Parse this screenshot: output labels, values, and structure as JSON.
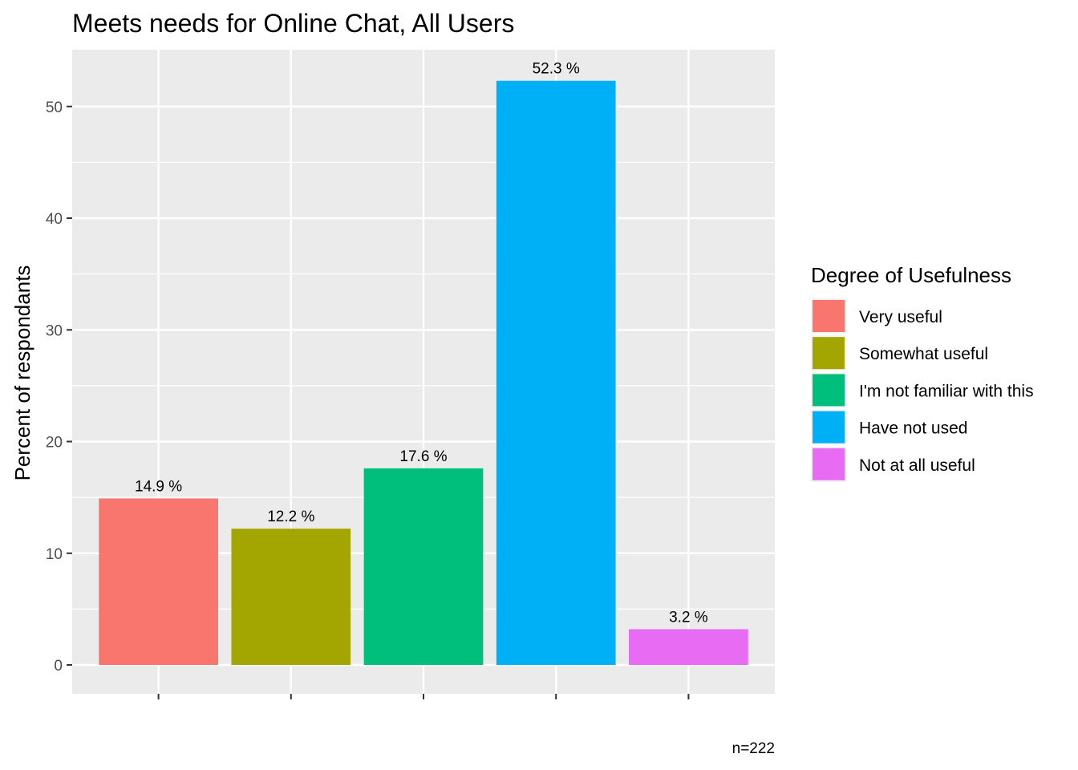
{
  "chart_data": {
    "type": "bar",
    "title": "Meets needs for Online Chat, All Users",
    "xlabel": "",
    "ylabel": "Percent of respondants",
    "ylim": [
      0,
      54.9
    ],
    "yticks": [
      0,
      10,
      20,
      30,
      40,
      50
    ],
    "grid": true,
    "legend": {
      "title": "Degree of Usefulness",
      "placement": "right"
    },
    "categories": [
      "Very useful",
      "Somewhat useful",
      "I'm not familiar with this",
      "Have not used",
      "Not at all useful"
    ],
    "values": [
      14.9,
      12.2,
      17.6,
      52.3,
      3.2
    ],
    "data_labels": [
      "14.9 %",
      "12.2 %",
      "17.6 %",
      "52.3 %",
      "3.2 %"
    ],
    "colors": [
      "#F8766D",
      "#A3A500",
      "#00BF7D",
      "#00B0F6",
      "#E76BF3"
    ],
    "caption": "n=222"
  }
}
